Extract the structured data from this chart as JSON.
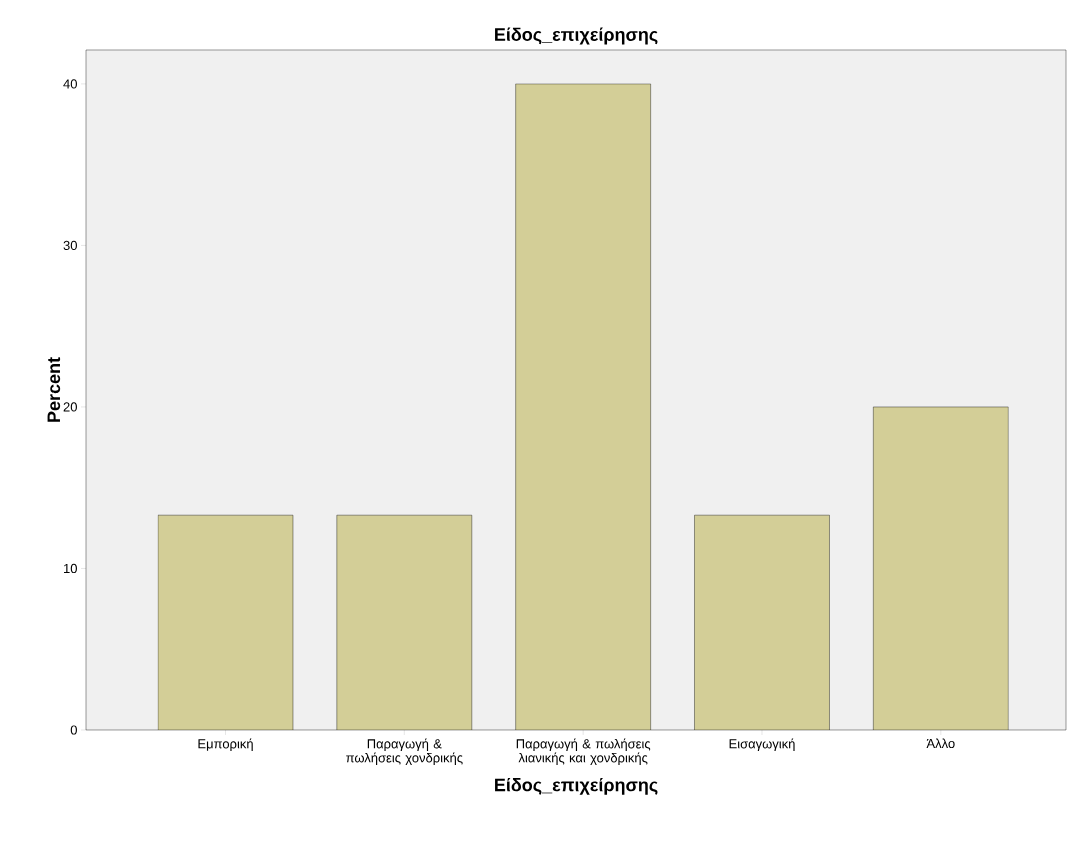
{
  "chart_data": {
    "type": "bar",
    "title": "Είδος_επιχείρησης",
    "xlabel": "Είδος_επιχείρησης",
    "ylabel": "Percent",
    "categories": [
      "Εμπορική",
      "Παραγωγή & πωλήσεις χονδρικής",
      "Παραγωγή & πωλήσεις λιανικής και χονδρικής",
      "Εισαγωγική",
      "Άλλο"
    ],
    "values": [
      13.3,
      13.3,
      40,
      13.3,
      20
    ],
    "color": "#d3ce97",
    "ylim": [
      0,
      42.1
    ],
    "yticks": [
      0,
      10,
      20,
      30,
      40
    ],
    "grid": false
  }
}
